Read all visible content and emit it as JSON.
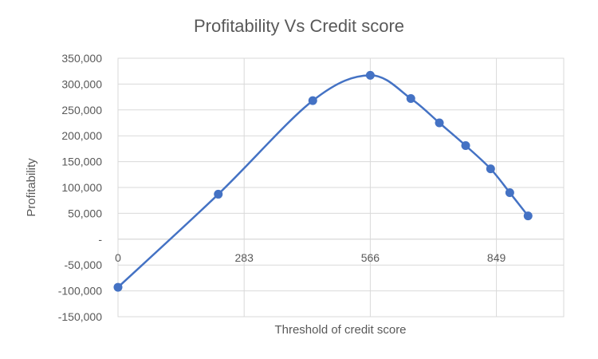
{
  "chart_data": {
    "type": "scatter",
    "title": "Profitability Vs Credit score",
    "xlabel": "Threshold of credit score",
    "ylabel": "Profitability",
    "xlim": [
      0,
      1000
    ],
    "ylim": [
      -150000,
      350000
    ],
    "x_ticks": [
      0,
      283,
      566,
      849
    ],
    "x_tick_labels": [
      "0",
      "283",
      "566",
      "849"
    ],
    "y_ticks": [
      350000,
      300000,
      250000,
      200000,
      150000,
      100000,
      50000,
      0,
      -50000,
      -100000,
      -150000
    ],
    "y_tick_labels": [
      "350,000",
      "300,000",
      "250,000",
      "200,000",
      "150,000",
      "100,000",
      "50,000",
      "-",
      "-50,000",
      "-100,000",
      "-150,000"
    ],
    "grid": true,
    "smooth_line": true,
    "series": [
      {
        "color": "#4472c4",
        "points": [
          {
            "x": 0,
            "y": -93000
          },
          {
            "x": 225,
            "y": 87000
          },
          {
            "x": 437,
            "y": 268000
          },
          {
            "x": 566,
            "y": 317000
          },
          {
            "x": 657,
            "y": 272000
          },
          {
            "x": 721,
            "y": 225000
          },
          {
            "x": 780,
            "y": 181000
          },
          {
            "x": 836,
            "y": 136000
          },
          {
            "x": 879,
            "y": 90000
          },
          {
            "x": 920,
            "y": 45000
          }
        ]
      }
    ]
  }
}
